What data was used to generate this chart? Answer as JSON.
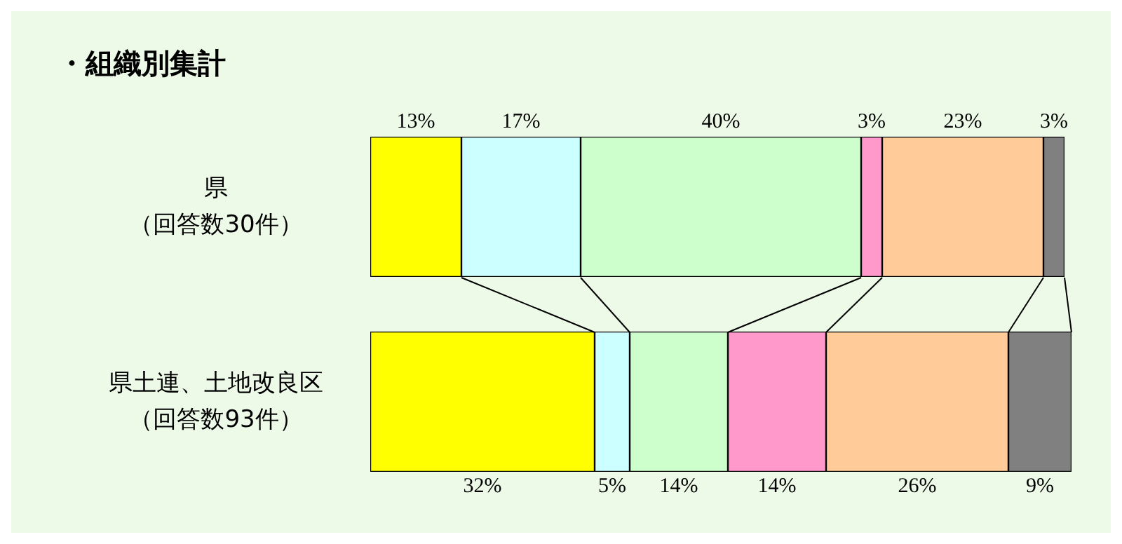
{
  "chart_data": {
    "type": "bar",
    "orientation": "horizontal",
    "stacked": true,
    "title": "・組織別集計",
    "categories": [
      "県（回答数30件）",
      "県土連、土地改良区（回答数93件）"
    ],
    "tick_labels": "y",
    "series": [
      {
        "color": "#ffff00",
        "values": [
          13,
          32
        ],
        "value_labels": [
          "13%",
          "32%"
        ]
      },
      {
        "color": "#ccffff",
        "values": [
          17,
          5
        ],
        "value_labels": [
          "17%",
          "5%"
        ]
      },
      {
        "color": "#ccffcc",
        "values": [
          40,
          14
        ],
        "value_labels": [
          "40%",
          "14%"
        ]
      },
      {
        "color": "#ff99cc",
        "values": [
          3,
          14
        ],
        "value_labels": [
          "3%",
          "14%"
        ]
      },
      {
        "color": "#ffcc99",
        "values": [
          23,
          26
        ],
        "value_labels": [
          "23%",
          "26%"
        ]
      },
      {
        "color": "#808080",
        "values": [
          3,
          9
        ],
        "value_labels": [
          "3%",
          "9%"
        ]
      }
    ]
  }
}
